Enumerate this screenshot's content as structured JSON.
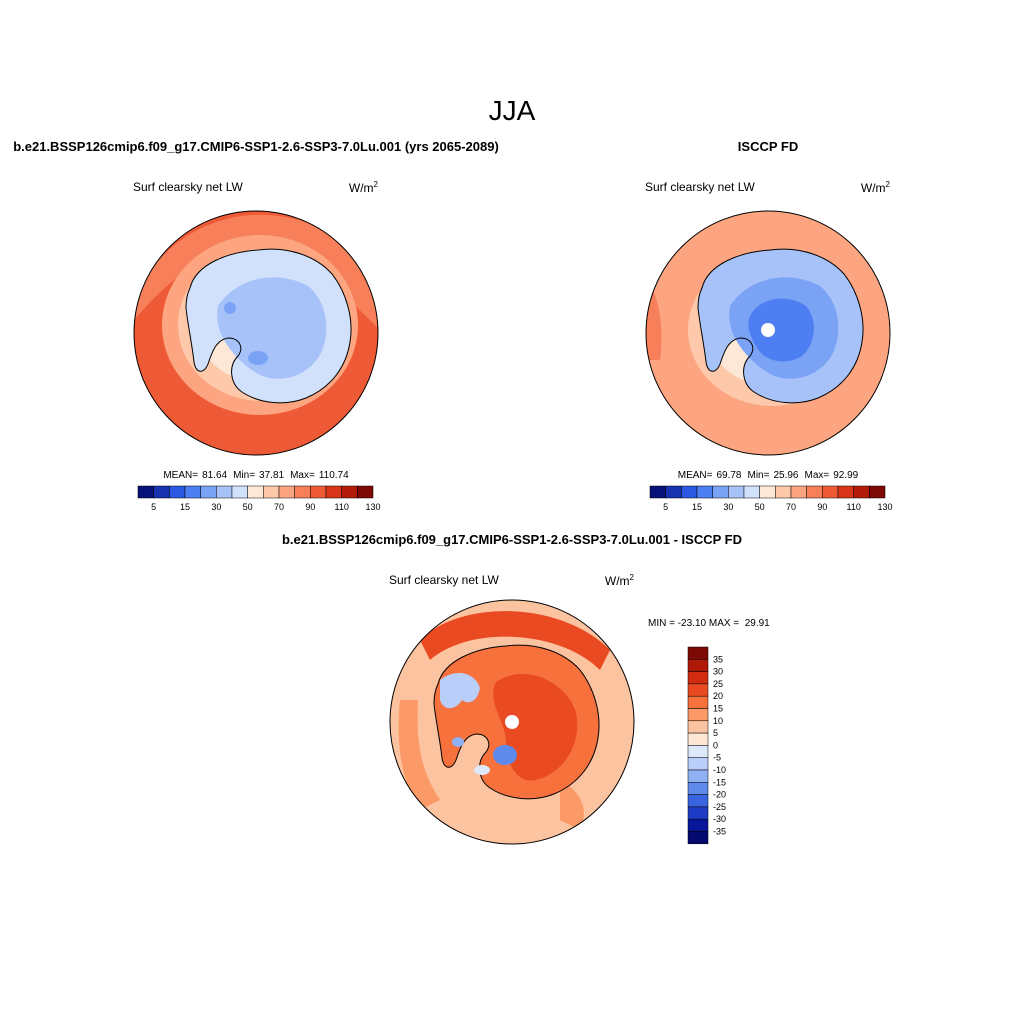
{
  "figure": {
    "title": "JJA"
  },
  "panels": [
    {
      "title": "b.e21.BSSP126cmip6.f09_g17.CMIP6-SSP1-2.6-SSP3-7.0Lu.001 (yrs 2065-2089)",
      "variable": "Surf clearsky net LW",
      "units_base": "W/m",
      "units_exp": "2",
      "stats": {
        "mean_label": "MEAN=",
        "mean": "81.64",
        "min_label": "Min=",
        "min": "37.81",
        "max_label": "Max=",
        "max": "110.74"
      },
      "colorbar_ticks": [
        "5",
        "15",
        "30",
        "50",
        "70",
        "90",
        "110",
        "130"
      ]
    },
    {
      "title": "ISCCP FD",
      "variable": "Surf clearsky net LW",
      "units_base": "W/m",
      "units_exp": "2",
      "stats": {
        "mean_label": "MEAN=",
        "mean": "69.78",
        "min_label": "Min=",
        "min": "25.96",
        "max_label": "Max=",
        "max": "92.99"
      },
      "colorbar_ticks": [
        "5",
        "15",
        "30",
        "50",
        "70",
        "90",
        "110",
        "130"
      ]
    }
  ],
  "diff_panel": {
    "title": "b.e21.BSSP126cmip6.f09_g17.CMIP6-SSP1-2.6-SSP3-7.0Lu.001 - ISCCP FD",
    "variable": "Surf clearsky net LW",
    "units_base": "W/m",
    "units_exp": "2",
    "minmax": "MIN = -23.10 MAX =  29.91",
    "colorbar_ticks": [
      "35",
      "30",
      "25",
      "20",
      "15",
      "10",
      "5",
      "0",
      "-5",
      "-10",
      "-15",
      "-20",
      "-25",
      "-30",
      "-35"
    ]
  },
  "colors": {
    "seq_scale": [
      "#08107a",
      "#1632b0",
      "#2a58e0",
      "#4d7ef2",
      "#7aa2f5",
      "#a7c2f8",
      "#d1e0fb",
      "#fde8d8",
      "#fdc9aa",
      "#fca580",
      "#f7805a",
      "#ee5a35",
      "#d93518",
      "#b31a0a",
      "#7d0a05"
    ],
    "div_scale": [
      "#7d0a05",
      "#b01808",
      "#d22c10",
      "#ea4a22",
      "#f6713c",
      "#fb9a66",
      "#fcc3a0",
      "#fde6d3",
      "#dde9fb",
      "#b9cef8",
      "#8fb0f3",
      "#5f8aec",
      "#3a63df",
      "#1d3bc4",
      "#08169a",
      "#050a6e"
    ]
  }
}
